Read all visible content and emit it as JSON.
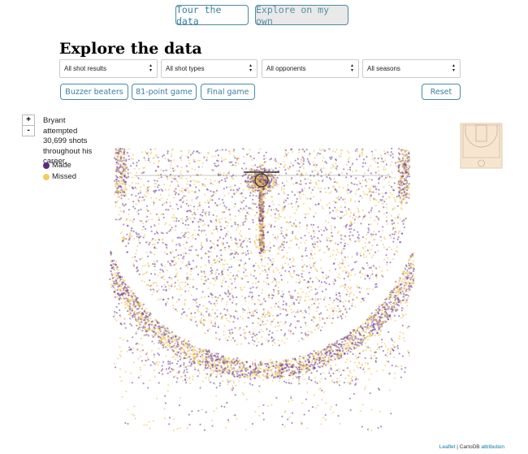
{
  "nav": {
    "tour": "Tour the data",
    "explore": "Explore on my own"
  },
  "header": {
    "title": "Explore the data"
  },
  "filters": [
    "All shot results",
    "All shot types",
    "All opponents",
    "All seasons"
  ],
  "presets": [
    "Buzzer beaters",
    "81-point game",
    "Final game"
  ],
  "reset": "Reset",
  "zoom": {
    "in": "+",
    "out": "-"
  },
  "summary": "Bryant attempted 30,699 shots throughout his career.",
  "legend": [
    "Made",
    "Missed"
  ],
  "attribution": {
    "leaflet": "Leaflet",
    "sep": " | CartoDB ",
    "attr": "attribution"
  }
}
